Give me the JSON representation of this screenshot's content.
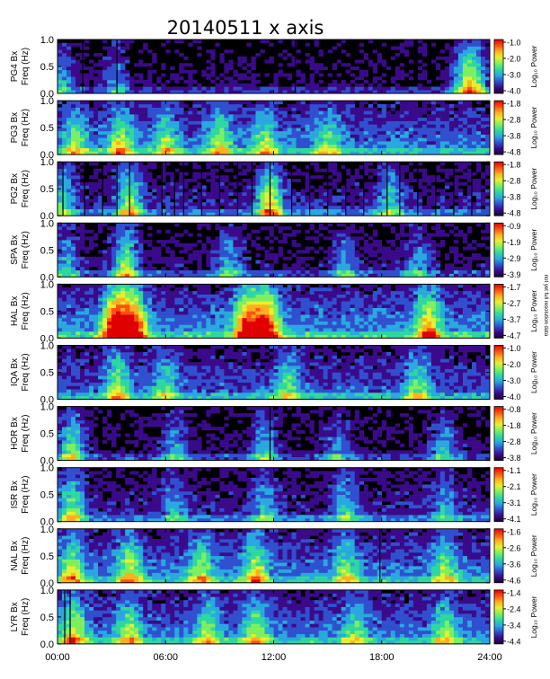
{
  "chart_data": {
    "type": "heatmap",
    "title": "20140511 x axis",
    "xlim": [
      0,
      24
    ],
    "x_ticks": [
      "00:00",
      "06:00",
      "12:00",
      "18:00",
      "24:00"
    ],
    "x_tick_values": [
      0,
      6,
      12,
      18,
      24
    ],
    "ylim": [
      0,
      1.0
    ],
    "y_ticks": [
      "0.0",
      "0.5",
      "1.0"
    ],
    "colorbar_label": "Log₁₀ Power",
    "colormap": [
      "#1a0033",
      "#3a0a8a",
      "#3050d0",
      "#2aa8e0",
      "#2ed8a0",
      "#7ef060",
      "#e6f030",
      "#ffb020",
      "#ff5010",
      "#e00000"
    ],
    "panels": [
      {
        "station_label": "PG4 Bx",
        "freq_label": "Freq (Hz)",
        "cbar_ticks": [
          "-1.0",
          "-2.0",
          "-3.0",
          "-4.0"
        ],
        "base": 0.05,
        "bands": [
          [
            0.3,
            0.35
          ],
          [
            3.2,
            0.3
          ],
          [
            22.6,
            0.45
          ],
          [
            23.2,
            0.5
          ]
        ],
        "streaks": [
          1.4,
          3.3,
          13.2
        ]
      },
      {
        "station_label": "PG3 Bx",
        "freq_label": "Freq (Hz)",
        "cbar_ticks": [
          "-1.8",
          "-2.8",
          "-3.8",
          "-4.8"
        ],
        "base": 0.3,
        "bands": [
          [
            1.0,
            0.4
          ],
          [
            3.5,
            0.5
          ],
          [
            6.0,
            0.4
          ],
          [
            9.0,
            0.45
          ],
          [
            11.5,
            0.4
          ],
          [
            15.0,
            0.35
          ]
        ],
        "streaks": []
      },
      {
        "station_label": "PG2 Bx",
        "freq_label": "Freq (Hz)",
        "cbar_ticks": [
          "-1.8",
          "-2.8",
          "-3.8",
          "-4.8"
        ],
        "base": 0.15,
        "bands": [
          [
            0.3,
            0.4
          ],
          [
            4.0,
            0.6
          ],
          [
            11.8,
            0.75
          ],
          [
            18.5,
            0.4
          ]
        ],
        "streaks": [
          0.3,
          1.5,
          2.5,
          3.3,
          4.0,
          5.8,
          6.5,
          7.0,
          8.0,
          9.0,
          10.0,
          10.8,
          11.8,
          13.0,
          14.0,
          15.0,
          16.0,
          17.0,
          18.3,
          19.0,
          20.0,
          21.0,
          22.0,
          23.0
        ]
      },
      {
        "station_label": "SPA Bx",
        "freq_label": "Freq (Hz)",
        "cbar_ticks": [
          "-0.9",
          "-1.9",
          "-2.9",
          "-3.9"
        ],
        "base": 0.1,
        "bands": [
          [
            0.5,
            0.35
          ],
          [
            3.8,
            0.6
          ],
          [
            9.5,
            0.35
          ],
          [
            16.0,
            0.3
          ],
          [
            20.0,
            0.3
          ]
        ],
        "streaks": []
      },
      {
        "station_label": "HAL Bx",
        "freq_label": "Freq (Hz)",
        "cbar_ticks": [
          "-1.7",
          "-2.7",
          "-3.7",
          "-4.7"
        ],
        "base": 0.35,
        "bands": [
          [
            3.2,
            0.95
          ],
          [
            4.2,
            0.9
          ],
          [
            10.5,
            0.85
          ],
          [
            11.6,
            0.9
          ],
          [
            20.6,
            0.6
          ]
        ],
        "streaks": []
      },
      {
        "station_label": "IQA Bx",
        "freq_label": "Freq (Hz)",
        "cbar_ticks": [
          "-1.0",
          "-2.0",
          "-3.0",
          "-4.0"
        ],
        "base": 0.25,
        "bands": [
          [
            3.3,
            0.5
          ],
          [
            6.0,
            0.35
          ],
          [
            12.8,
            0.4
          ],
          [
            20.0,
            0.4
          ]
        ],
        "streaks": []
      },
      {
        "station_label": "HOR Bx",
        "freq_label": "Freq (Hz)",
        "cbar_ticks": [
          "-0.8",
          "-1.8",
          "-2.8",
          "-3.8"
        ],
        "base": 0.08,
        "bands": [
          [
            0.8,
            0.55
          ],
          [
            6.5,
            0.35
          ],
          [
            11.5,
            0.4
          ],
          [
            15.5,
            0.3
          ],
          [
            21.5,
            0.35
          ]
        ],
        "streaks": [
          11.8
        ]
      },
      {
        "station_label": "ISR Bx",
        "freq_label": "Freq (Hz)",
        "cbar_ticks": [
          "-1.1",
          "-2.1",
          "-3.1",
          "-4.1"
        ],
        "base": 0.15,
        "bands": [
          [
            0.8,
            0.55
          ],
          [
            6.5,
            0.3
          ],
          [
            11.5,
            0.35
          ],
          [
            16.0,
            0.35
          ],
          [
            21.5,
            0.3
          ]
        ],
        "streaks": []
      },
      {
        "station_label": "NAL Bx",
        "freq_label": "Freq (Hz)",
        "cbar_ticks": [
          "-1.6",
          "-2.6",
          "-3.6",
          "-4.6"
        ],
        "base": 0.3,
        "bands": [
          [
            0.8,
            0.5
          ],
          [
            4.0,
            0.5
          ],
          [
            8.0,
            0.45
          ],
          [
            11.0,
            0.5
          ],
          [
            16.0,
            0.4
          ],
          [
            21.5,
            0.4
          ]
        ],
        "streaks": [
          17.9
        ]
      },
      {
        "station_label": "LYR Bx",
        "freq_label": "Freq (Hz)",
        "cbar_ticks": [
          "-1.4",
          "-2.4",
          "-3.4",
          "-4.4"
        ],
        "base": 0.3,
        "bands": [
          [
            0.9,
            0.55
          ],
          [
            4.0,
            0.45
          ],
          [
            8.3,
            0.4
          ],
          [
            11.0,
            0.45
          ],
          [
            16.5,
            0.35
          ],
          [
            21.5,
            0.4
          ]
        ],
        "streaks": [
          0.4,
          0.7
        ]
      }
    ],
    "side_note": "not yet full resolution data"
  }
}
